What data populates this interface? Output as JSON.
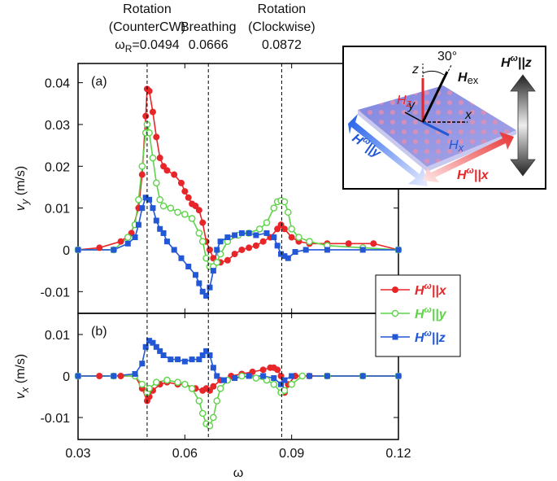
{
  "chart_data": [
    {
      "type": "line",
      "panel_label": "(a)",
      "ylabel": [
        "v",
        "y",
        " (m/s)"
      ],
      "xlim": [
        0.03,
        0.12
      ],
      "xticks": [
        0.03,
        0.06,
        0.09,
        0.12
      ],
      "ylim": [
        -0.0152,
        0.0446
      ],
      "yticks": [
        -0.01,
        0,
        0.01,
        0.02,
        0.03,
        0.04
      ],
      "legend": "right",
      "vlines": [
        {
          "lines": [
            "Rotation",
            "(CounterCW)"
          ],
          "symbol": "ω",
          "subscript": "R",
          "value": 0.0494,
          "label": "=0.0494"
        },
        {
          "lines": [
            "Breathing"
          ],
          "value": 0.0666,
          "label": "0.0666"
        },
        {
          "lines": [
            "Rotation",
            "(Clockwise)"
          ],
          "value": 0.0872,
          "label": "0.0872"
        }
      ],
      "series": [
        {
          "name": [
            "H",
            "ω",
            "||x"
          ],
          "color": "#e8262a",
          "marker": "circle",
          "x": [
            0.03,
            0.036,
            0.042,
            0.045,
            0.047,
            0.048,
            0.049,
            0.0494,
            0.05,
            0.051,
            0.052,
            0.053,
            0.054,
            0.055,
            0.057,
            0.059,
            0.06,
            0.061,
            0.062,
            0.063,
            0.064,
            0.065,
            0.066,
            0.067,
            0.068,
            0.07,
            0.072,
            0.074,
            0.076,
            0.078,
            0.08,
            0.082,
            0.084,
            0.086,
            0.087,
            0.088,
            0.09,
            0.092,
            0.095,
            0.1,
            0.106,
            0.113,
            0.12
          ],
          "values": [
            0,
            0.0005,
            0.002,
            0.004,
            0.01,
            0.018,
            0.032,
            0.0385,
            0.038,
            0.033,
            0.027,
            0.022,
            0.02,
            0.019,
            0.018,
            0.016,
            0.014,
            0.0125,
            0.011,
            0.0105,
            0.0095,
            0.0065,
            0.002,
            0,
            -0.002,
            -0.003,
            -0.0025,
            -0.001,
            0,
            0.0005,
            0.001,
            0.002,
            0.003,
            0.005,
            0.006,
            0.005,
            0.003,
            0.002,
            0.0015,
            0.0015,
            0.0015,
            0.0015,
            0
          ]
        },
        {
          "name": [
            "H",
            "ω",
            "||y"
          ],
          "color": "#5fd34a",
          "marker": "open-circle",
          "x": [
            0.03,
            0.04,
            0.044,
            0.046,
            0.047,
            0.048,
            0.049,
            0.0494,
            0.05,
            0.051,
            0.052,
            0.053,
            0.054,
            0.056,
            0.058,
            0.06,
            0.062,
            0.064,
            0.065,
            0.066,
            0.067,
            0.068,
            0.069,
            0.07,
            0.072,
            0.075,
            0.078,
            0.081,
            0.083,
            0.085,
            0.086,
            0.087,
            0.088,
            0.089,
            0.09,
            0.092,
            0.095,
            0.1,
            0.11,
            0.12
          ],
          "values": [
            0,
            0,
            0.003,
            0.006,
            0.012,
            0.02,
            0.028,
            0.03,
            0.028,
            0.022,
            0.016,
            0.012,
            0.0105,
            0.01,
            0.009,
            0.0085,
            0.0075,
            0.004,
            0.002,
            -0.002,
            -0.004,
            -0.004,
            -0.003,
            -0.001,
            0.002,
            0.0035,
            0.004,
            0.005,
            0.0065,
            0.01,
            0.0115,
            0.0118,
            0.0115,
            0.009,
            0.005,
            0.003,
            0.002,
            0.001,
            0.0005,
            0
          ]
        },
        {
          "name": [
            "H",
            "ω",
            "||z"
          ],
          "color": "#2257d6",
          "marker": "square",
          "x": [
            0.03,
            0.04,
            0.044,
            0.046,
            0.047,
            0.048,
            0.049,
            0.05,
            0.051,
            0.052,
            0.053,
            0.054,
            0.055,
            0.057,
            0.059,
            0.061,
            0.063,
            0.064,
            0.065,
            0.066,
            0.067,
            0.068,
            0.069,
            0.07,
            0.072,
            0.074,
            0.076,
            0.078,
            0.08,
            0.083,
            0.085,
            0.086,
            0.087,
            0.088,
            0.089,
            0.091,
            0.094,
            0.1,
            0.11,
            0.12
          ],
          "values": [
            0,
            0,
            0.0015,
            0.003,
            0.006,
            0.01,
            0.0125,
            0.012,
            0.01,
            0.007,
            0.005,
            0.004,
            0.002,
            0,
            -0.002,
            -0.004,
            -0.006,
            -0.008,
            -0.01,
            -0.011,
            -0.009,
            -0.005,
            0,
            0.002,
            0.003,
            0.0035,
            0.004,
            0.004,
            0.0035,
            0.004,
            0.003,
            0.001,
            -0.001,
            -0.0015,
            -0.002,
            -0.0005,
            0,
            0,
            0,
            0
          ]
        }
      ]
    },
    {
      "type": "line",
      "panel_label": "(b)",
      "ylabel": [
        "v",
        "x",
        " (m/s)"
      ],
      "xlabel": "ω",
      "xlim": [
        0.03,
        0.12
      ],
      "xticks": [
        0.03,
        0.06,
        0.09,
        0.12
      ],
      "ylim": [
        -0.0153,
        0.0151
      ],
      "yticks": [
        -0.01,
        0,
        0.01
      ],
      "series": [
        {
          "color": "#e8262a",
          "marker": "circle",
          "x": [
            0.03,
            0.036,
            0.042,
            0.046,
            0.048,
            0.0494,
            0.05,
            0.051,
            0.053,
            0.055,
            0.058,
            0.06,
            0.063,
            0.065,
            0.066,
            0.067,
            0.068,
            0.07,
            0.073,
            0.076,
            0.079,
            0.082,
            0.084,
            0.085,
            0.086,
            0.087,
            0.088,
            0.089,
            0.091,
            0.095,
            0.1,
            0.11,
            0.12
          ],
          "values": [
            0,
            0,
            0,
            0,
            -0.003,
            -0.006,
            -0.005,
            -0.0035,
            -0.002,
            -0.0015,
            -0.002,
            -0.002,
            -0.003,
            -0.0035,
            -0.003,
            -0.0035,
            -0.0025,
            -0.001,
            0,
            0.0005,
            0.001,
            0.0015,
            0.002,
            0.002,
            0.0015,
            0,
            -0.004,
            -0.002,
            0,
            0,
            0,
            0,
            0
          ]
        },
        {
          "color": "#5fd34a",
          "marker": "open-circle",
          "x": [
            0.03,
            0.04,
            0.046,
            0.048,
            0.0494,
            0.05,
            0.052,
            0.055,
            0.058,
            0.06,
            0.062,
            0.064,
            0.065,
            0.066,
            0.067,
            0.068,
            0.069,
            0.07,
            0.072,
            0.076,
            0.08,
            0.083,
            0.085,
            0.087,
            0.088,
            0.09,
            0.093,
            0.1,
            0.11,
            0.12
          ],
          "values": [
            0,
            0,
            0,
            -0.002,
            -0.004,
            -0.003,
            -0.0015,
            -0.001,
            -0.0015,
            -0.002,
            -0.003,
            -0.006,
            -0.009,
            -0.0115,
            -0.012,
            -0.01,
            -0.006,
            -0.003,
            -0.001,
            0,
            -0.0005,
            -0.001,
            -0.002,
            -0.004,
            -0.0035,
            -0.002,
            0,
            0,
            0,
            0
          ]
        },
        {
          "color": "#2257d6",
          "marker": "square",
          "x": [
            0.03,
            0.04,
            0.046,
            0.048,
            0.049,
            0.05,
            0.051,
            0.052,
            0.053,
            0.054,
            0.056,
            0.058,
            0.06,
            0.062,
            0.064,
            0.065,
            0.066,
            0.067,
            0.068,
            0.069,
            0.071,
            0.074,
            0.078,
            0.082,
            0.085,
            0.087,
            0.088,
            0.09,
            0.095,
            0.1,
            0.11,
            0.12
          ],
          "values": [
            0,
            0,
            0.0005,
            0.003,
            0.007,
            0.0085,
            0.008,
            0.007,
            0.006,
            0.005,
            0.004,
            0.004,
            0.0035,
            0.004,
            0.004,
            0.005,
            0.006,
            0.005,
            0.002,
            0,
            -0.001,
            -0.0005,
            0,
            0,
            -0.0005,
            -0.002,
            -0.001,
            0,
            0,
            0,
            0,
            0
          ]
        }
      ]
    }
  ],
  "inset": {
    "angle": "30°",
    "z_axis": "z",
    "y_axis": "y",
    "x_axis": "x",
    "h_ex": [
      "H",
      "ex"
    ],
    "h_z": [
      "H",
      "z"
    ],
    "h_x": [
      "H",
      "x"
    ],
    "field_y": [
      "H",
      "ω",
      "||y"
    ],
    "field_x": [
      "H",
      "ω",
      "||x"
    ],
    "field_z": [
      "H",
      "ω",
      "||z"
    ]
  }
}
